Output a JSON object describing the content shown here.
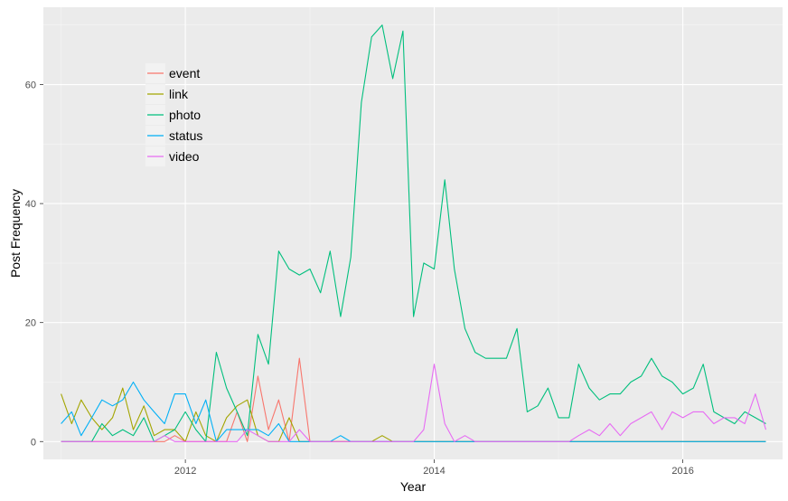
{
  "chart_data": {
    "type": "line",
    "xlabel": "Year",
    "ylabel": "Post Frequency",
    "x_ticks": [
      "2012",
      "2014",
      "2016"
    ],
    "y_ticks": [
      "0",
      "20",
      "40",
      "60"
    ],
    "xlim": [
      "2010-11-10",
      "2016-10-20"
    ],
    "ylim": [
      -3,
      73
    ],
    "grid": true,
    "legend_position": "top-left",
    "background": "#ebebeb",
    "x": [
      "2011-01",
      "2011-02",
      "2011-03",
      "2011-04",
      "2011-05",
      "2011-06",
      "2011-07",
      "2011-08",
      "2011-09",
      "2011-10",
      "2011-11",
      "2011-12",
      "2012-01",
      "2012-02",
      "2012-03",
      "2012-04",
      "2012-05",
      "2012-06",
      "2012-07",
      "2012-08",
      "2012-09",
      "2012-10",
      "2012-11",
      "2012-12",
      "2013-01",
      "2013-02",
      "2013-03",
      "2013-04",
      "2013-05",
      "2013-06",
      "2013-07",
      "2013-08",
      "2013-09",
      "2013-10",
      "2013-11",
      "2013-12",
      "2014-01",
      "2014-02",
      "2014-03",
      "2014-04",
      "2014-05",
      "2014-06",
      "2014-07",
      "2014-08",
      "2014-09",
      "2014-10",
      "2014-11",
      "2014-12",
      "2015-01",
      "2015-02",
      "2015-03",
      "2015-04",
      "2015-05",
      "2015-06",
      "2015-07",
      "2015-08",
      "2015-09",
      "2015-10",
      "2015-11",
      "2015-12",
      "2016-01",
      "2016-02",
      "2016-03",
      "2016-04",
      "2016-05",
      "2016-06",
      "2016-07",
      "2016-08",
      "2016-09"
    ],
    "series": [
      {
        "name": "event",
        "color": "#F8766D",
        "values": [
          0,
          0,
          0,
          0,
          0,
          0,
          0,
          0,
          0,
          0,
          0,
          1,
          0,
          0,
          0,
          0,
          0,
          5,
          0,
          11,
          2,
          7,
          0,
          14,
          0,
          0,
          0,
          0,
          0,
          0,
          0,
          0,
          0,
          0,
          0,
          0,
          0,
          0,
          0,
          0,
          0,
          0,
          0,
          0,
          0,
          0,
          0,
          0,
          0,
          0,
          0,
          0,
          0,
          0,
          0,
          0,
          0,
          0,
          0,
          0,
          0,
          0,
          0,
          0,
          0,
          0,
          0,
          0,
          0
        ]
      },
      {
        "name": "link",
        "color": "#A3A500",
        "values": [
          8,
          3,
          7,
          4,
          2,
          4,
          9,
          2,
          6,
          1,
          2,
          2,
          0,
          5,
          1,
          0,
          4,
          6,
          7,
          1,
          0,
          0,
          4,
          0,
          0,
          0,
          0,
          0,
          0,
          0,
          0,
          1,
          0,
          0,
          0,
          0,
          0,
          0,
          0,
          0,
          0,
          0,
          0,
          0,
          0,
          0,
          0,
          0,
          0,
          0,
          0,
          0,
          0,
          0,
          0,
          0,
          0,
          0,
          0,
          0,
          0,
          0,
          0,
          0,
          0,
          0,
          0,
          0,
          0
        ]
      },
      {
        "name": "photo",
        "color": "#00BF7D",
        "values": [
          0,
          0,
          0,
          0,
          3,
          1,
          2,
          1,
          4,
          0,
          1,
          2,
          5,
          2,
          0,
          15,
          9,
          5,
          1,
          18,
          13,
          32,
          29,
          28,
          29,
          25,
          32,
          21,
          31,
          57,
          68,
          70,
          61,
          69,
          21,
          30,
          29,
          44,
          29,
          19,
          15,
          14,
          14,
          14,
          19,
          5,
          6,
          9,
          4,
          4,
          13,
          9,
          7,
          8,
          8,
          10,
          11,
          14,
          11,
          10,
          8,
          9,
          13,
          5,
          4,
          3,
          5,
          4,
          3
        ]
      },
      {
        "name": "status",
        "color": "#00B0F6",
        "values": [
          3,
          5,
          1,
          4,
          7,
          6,
          7,
          10,
          7,
          5,
          3,
          8,
          8,
          3,
          7,
          0,
          2,
          2,
          2,
          2,
          1,
          3,
          0,
          0,
          0,
          0,
          0,
          1,
          0,
          0,
          0,
          0,
          0,
          0,
          0,
          0,
          0,
          0,
          0,
          0,
          0,
          0,
          0,
          0,
          0,
          0,
          0,
          0,
          0,
          0,
          0,
          0,
          0,
          0,
          0,
          0,
          0,
          0,
          0,
          0,
          0,
          0,
          0,
          0,
          0,
          0,
          0,
          0,
          0
        ]
      },
      {
        "name": "video",
        "color": "#E76BF3",
        "values": [
          0,
          0,
          0,
          0,
          0,
          0,
          0,
          0,
          0,
          0,
          1,
          0,
          0,
          0,
          0,
          0,
          0,
          0,
          2,
          1,
          0,
          0,
          0,
          2,
          0,
          0,
          0,
          0,
          0,
          0,
          0,
          0,
          0,
          0,
          0,
          2,
          13,
          3,
          0,
          1,
          0,
          0,
          0,
          0,
          0,
          0,
          0,
          0,
          0,
          0,
          1,
          2,
          1,
          3,
          1,
          3,
          4,
          5,
          2,
          5,
          4,
          5,
          5,
          3,
          4,
          4,
          3,
          8,
          2
        ]
      }
    ]
  }
}
